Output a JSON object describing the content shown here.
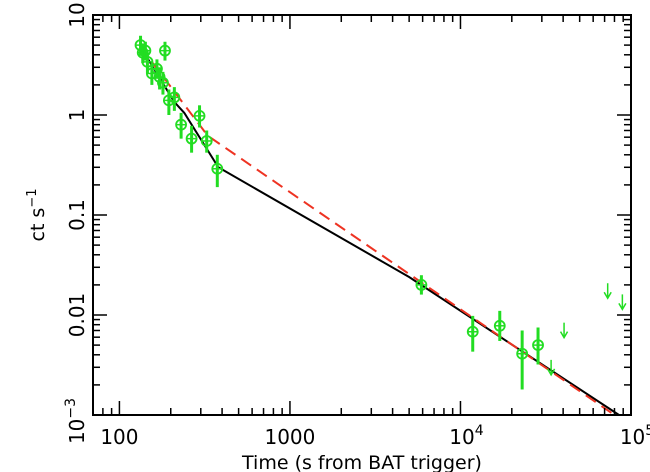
{
  "chart_data": {
    "type": "scatter",
    "title": "",
    "xlabel": "Time (s from BAT trigger)",
    "ylabel": "ct s",
    "ylabel_sup": "−1",
    "xscale": "log",
    "yscale": "log",
    "xlim": [
      70,
      100000
    ],
    "ylim": [
      0.001,
      10
    ],
    "grid": false,
    "x_ticks": [
      {
        "value": 100,
        "base": "100",
        "sup": ""
      },
      {
        "value": 1000,
        "base": "1000",
        "sup": ""
      },
      {
        "value": 10000,
        "base": "10",
        "sup": "4"
      },
      {
        "value": 100000,
        "base": "10",
        "sup": "5"
      }
    ],
    "y_ticks": [
      {
        "value": 0.001,
        "base": "10",
        "sup": "−3"
      },
      {
        "value": 0.01,
        "base": "0.01",
        "sup": ""
      },
      {
        "value": 0.1,
        "base": "0.1",
        "sup": ""
      },
      {
        "value": 1,
        "base": "1",
        "sup": ""
      },
      {
        "value": 10,
        "base": "10",
        "sup": ""
      }
    ],
    "colors": {
      "data": "#22dd22",
      "fit_broken": "#000000",
      "fit_dashed": "#ee3322",
      "axes": "#000000"
    },
    "series": [
      {
        "kind": "data",
        "points": [
          {
            "x": 133,
            "y": 5.0,
            "ylo": 3.9,
            "yhi": 6.2
          },
          {
            "x": 137,
            "y": 4.2,
            "ylo": 3.3,
            "yhi": 5.2
          },
          {
            "x": 142,
            "y": 4.4,
            "ylo": 3.5,
            "yhi": 5.4
          },
          {
            "x": 146,
            "y": 3.4,
            "ylo": 2.6,
            "yhi": 4.2
          },
          {
            "x": 155,
            "y": 2.6,
            "ylo": 2.0,
            "yhi": 3.3
          },
          {
            "x": 166,
            "y": 2.9,
            "ylo": 2.3,
            "yhi": 3.6
          },
          {
            "x": 172,
            "y": 2.4,
            "ylo": 1.8,
            "yhi": 3.0
          },
          {
            "x": 180,
            "y": 2.1,
            "ylo": 1.6,
            "yhi": 2.7
          },
          {
            "x": 185,
            "y": 4.4,
            "ylo": 3.5,
            "yhi": 5.4
          },
          {
            "x": 195,
            "y": 1.4,
            "ylo": 1.0,
            "yhi": 1.8
          },
          {
            "x": 210,
            "y": 1.5,
            "ylo": 1.1,
            "yhi": 1.9
          },
          {
            "x": 230,
            "y": 0.8,
            "ylo": 0.58,
            "yhi": 1.05
          },
          {
            "x": 265,
            "y": 0.58,
            "ylo": 0.42,
            "yhi": 0.78
          },
          {
            "x": 295,
            "y": 0.98,
            "ylo": 0.75,
            "yhi": 1.25
          },
          {
            "x": 325,
            "y": 0.55,
            "ylo": 0.42,
            "yhi": 0.7
          },
          {
            "x": 375,
            "y": 0.29,
            "ylo": 0.19,
            "yhi": 0.4
          },
          {
            "x": 5900,
            "y": 0.02,
            "ylo": 0.016,
            "yhi": 0.025
          },
          {
            "x": 11800,
            "y": 0.0068,
            "ylo": 0.0043,
            "yhi": 0.0098
          },
          {
            "x": 17000,
            "y": 0.0078,
            "ylo": 0.0055,
            "yhi": 0.011
          },
          {
            "x": 23000,
            "y": 0.0041,
            "ylo": 0.0018,
            "yhi": 0.007
          },
          {
            "x": 28500,
            "y": 0.005,
            "ylo": 0.0032,
            "yhi": 0.0075
          }
        ]
      },
      {
        "kind": "upper_limit",
        "points": [
          {
            "x": 34000,
            "y": 0.0031
          },
          {
            "x": 40500,
            "y": 0.0073
          },
          {
            "x": 73000,
            "y": 0.0181
          },
          {
            "x": 89000,
            "y": 0.014
          }
        ]
      },
      {
        "kind": "fit",
        "style": "solid",
        "points": [
          {
            "x": 133,
            "y": 4.8
          },
          {
            "x": 210,
            "y": 1.35
          },
          {
            "x": 240,
            "y": 1.05
          },
          {
            "x": 380,
            "y": 0.3
          },
          {
            "x": 5000,
            "y": 0.024
          },
          {
            "x": 85000,
            "y": 0.001
          }
        ]
      },
      {
        "kind": "fit",
        "style": "dashed",
        "points": [
          {
            "x": 133,
            "y": 4.8
          },
          {
            "x": 330,
            "y": 0.62
          },
          {
            "x": 80000,
            "y": 0.001
          }
        ]
      }
    ]
  }
}
